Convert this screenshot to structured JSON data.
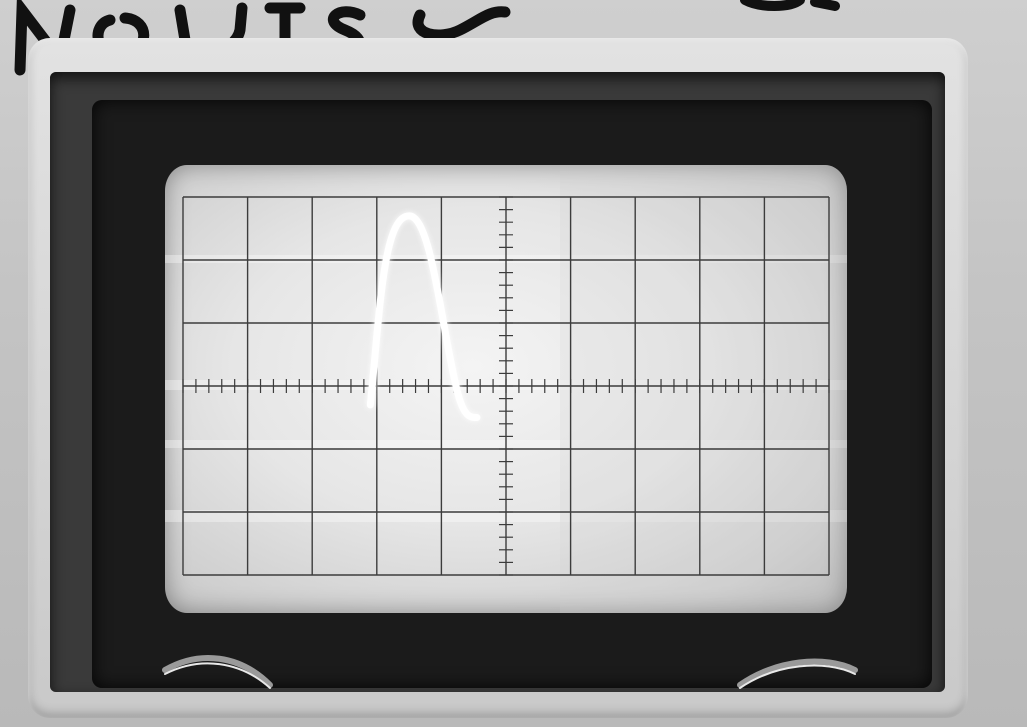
{
  "scene": {
    "subject": "oscilloscope-screen",
    "graticule": {
      "cols": 10,
      "rows": 6,
      "minor_ticks_per_div": 5
    },
    "trace": {
      "shape": "single-pulse",
      "peak_position_div": 3.5,
      "peak_level_div": 2.7,
      "baseline_level_div": -0.5
    },
    "colors": {
      "casing": "#c8c8c8",
      "frame": "#1b1b1b",
      "screen": "#e8e8e8",
      "grid": "#3c3c3c",
      "trace": "#ffffff",
      "scrawl": "#111111"
    }
  }
}
